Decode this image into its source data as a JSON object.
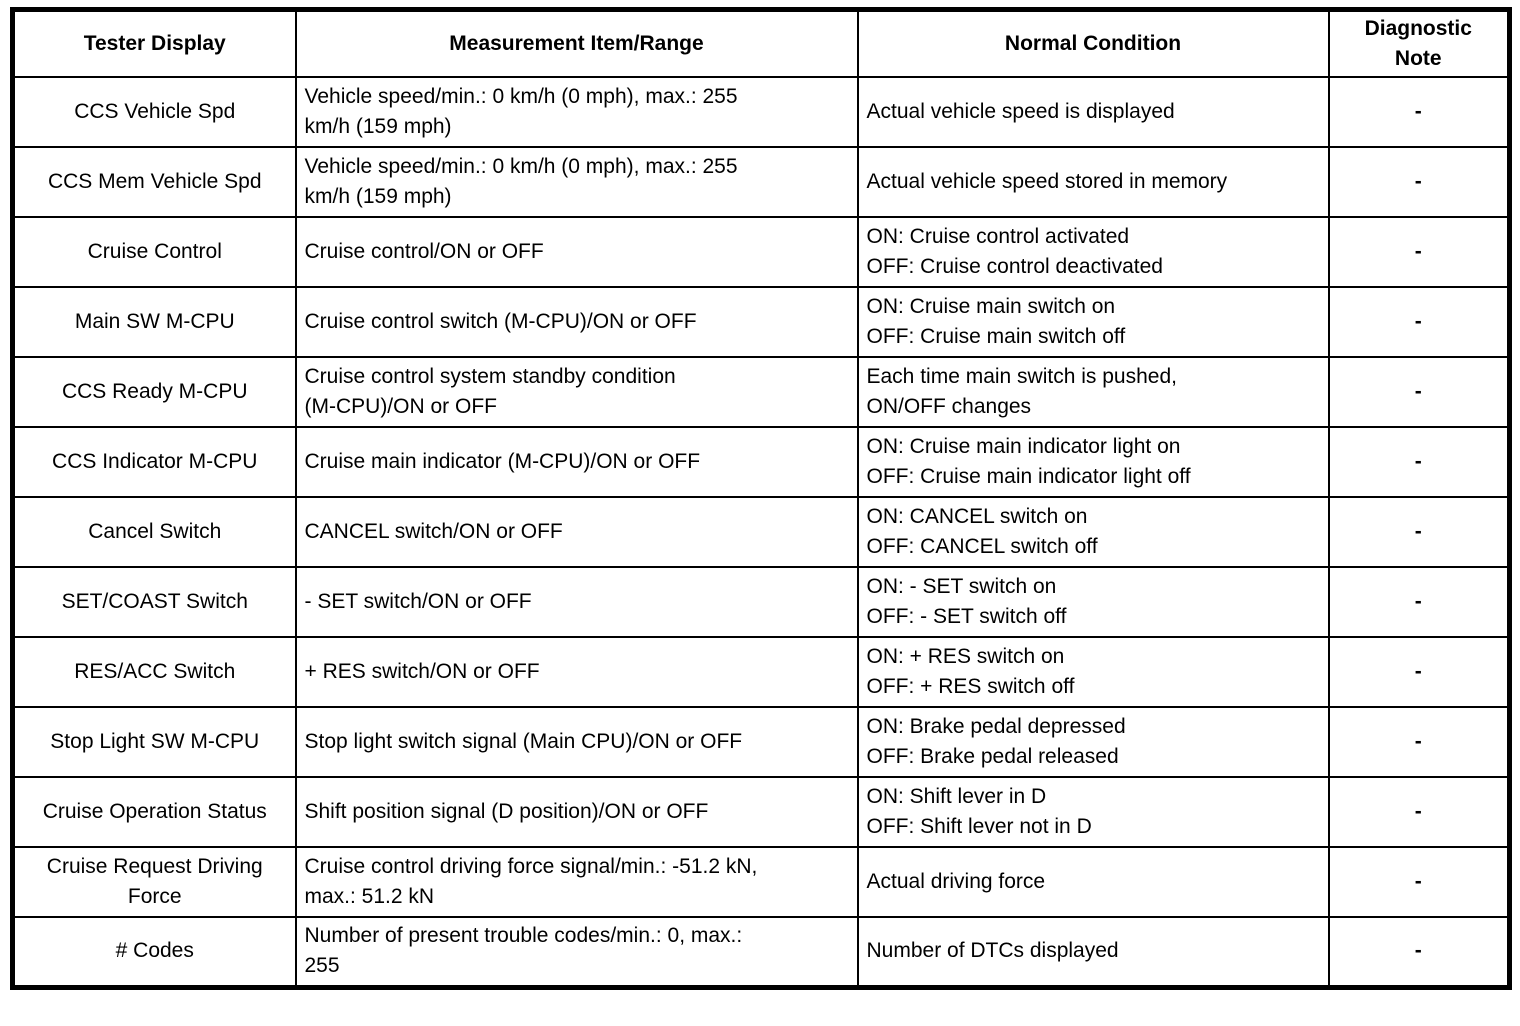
{
  "colors": {
    "border": "#000000",
    "background": "#ffffff",
    "text": "#000000"
  },
  "table": {
    "columns": [
      "Tester Display",
      "Measurement Item/Range",
      "Normal Condition",
      "Diagnostic\nNote"
    ],
    "rows": [
      {
        "tester_display": "CCS Vehicle Spd",
        "measurement": "Vehicle speed/min.: 0 km/h (0 mph), max.: 255\nkm/h (159 mph)",
        "normal_condition": "Actual vehicle speed is displayed",
        "note": "-"
      },
      {
        "tester_display": "CCS Mem Vehicle Spd",
        "measurement": "Vehicle speed/min.: 0 km/h (0 mph), max.: 255\nkm/h (159 mph)",
        "normal_condition": "Actual vehicle speed stored in memory",
        "note": "-"
      },
      {
        "tester_display": "Cruise Control",
        "measurement": "Cruise control/ON or OFF",
        "normal_condition": "ON: Cruise control activated\nOFF: Cruise control deactivated",
        "note": "-"
      },
      {
        "tester_display": "Main SW M-CPU",
        "measurement": "Cruise control switch (M-CPU)/ON or OFF",
        "normal_condition": "ON: Cruise main switch on\nOFF: Cruise main switch off",
        "note": "-"
      },
      {
        "tester_display": "CCS Ready M-CPU",
        "measurement": "Cruise control system standby condition\n(M-CPU)/ON or OFF",
        "normal_condition": "Each time main switch is pushed,\nON/OFF changes",
        "note": "-"
      },
      {
        "tester_display": "CCS Indicator M-CPU",
        "measurement": "Cruise main indicator (M-CPU)/ON or OFF",
        "normal_condition": "ON: Cruise main indicator light on\nOFF: Cruise main indicator light off",
        "note": "-"
      },
      {
        "tester_display": "Cancel Switch",
        "measurement": "CANCEL switch/ON or OFF",
        "normal_condition": "ON: CANCEL switch on\nOFF: CANCEL switch off",
        "note": "-"
      },
      {
        "tester_display": "SET/COAST Switch",
        "measurement": "- SET switch/ON or OFF",
        "normal_condition": "ON: - SET switch on\nOFF: - SET switch off",
        "note": "-"
      },
      {
        "tester_display": "RES/ACC Switch",
        "measurement": "+ RES switch/ON or OFF",
        "normal_condition": "ON: + RES switch on\nOFF: + RES switch off",
        "note": "-"
      },
      {
        "tester_display": "Stop Light SW M-CPU",
        "measurement": "Stop light switch signal (Main CPU)/ON or OFF",
        "normal_condition": "ON: Brake pedal depressed\nOFF: Brake pedal released",
        "note": "-"
      },
      {
        "tester_display": "Cruise Operation Status",
        "measurement": "Shift position signal (D position)/ON or OFF",
        "normal_condition": "ON: Shift lever in D\nOFF: Shift lever not in D",
        "note": "-"
      },
      {
        "tester_display": "Cruise Request Driving\nForce",
        "measurement": "Cruise control driving force signal/min.: -51.2 kN,\nmax.: 51.2 kN",
        "normal_condition": "Actual driving force",
        "note": "-"
      },
      {
        "tester_display": "# Codes",
        "measurement": "Number of present trouble codes/min.: 0, max.:\n255",
        "normal_condition": "Number of DTCs displayed",
        "note": "-"
      }
    ]
  }
}
